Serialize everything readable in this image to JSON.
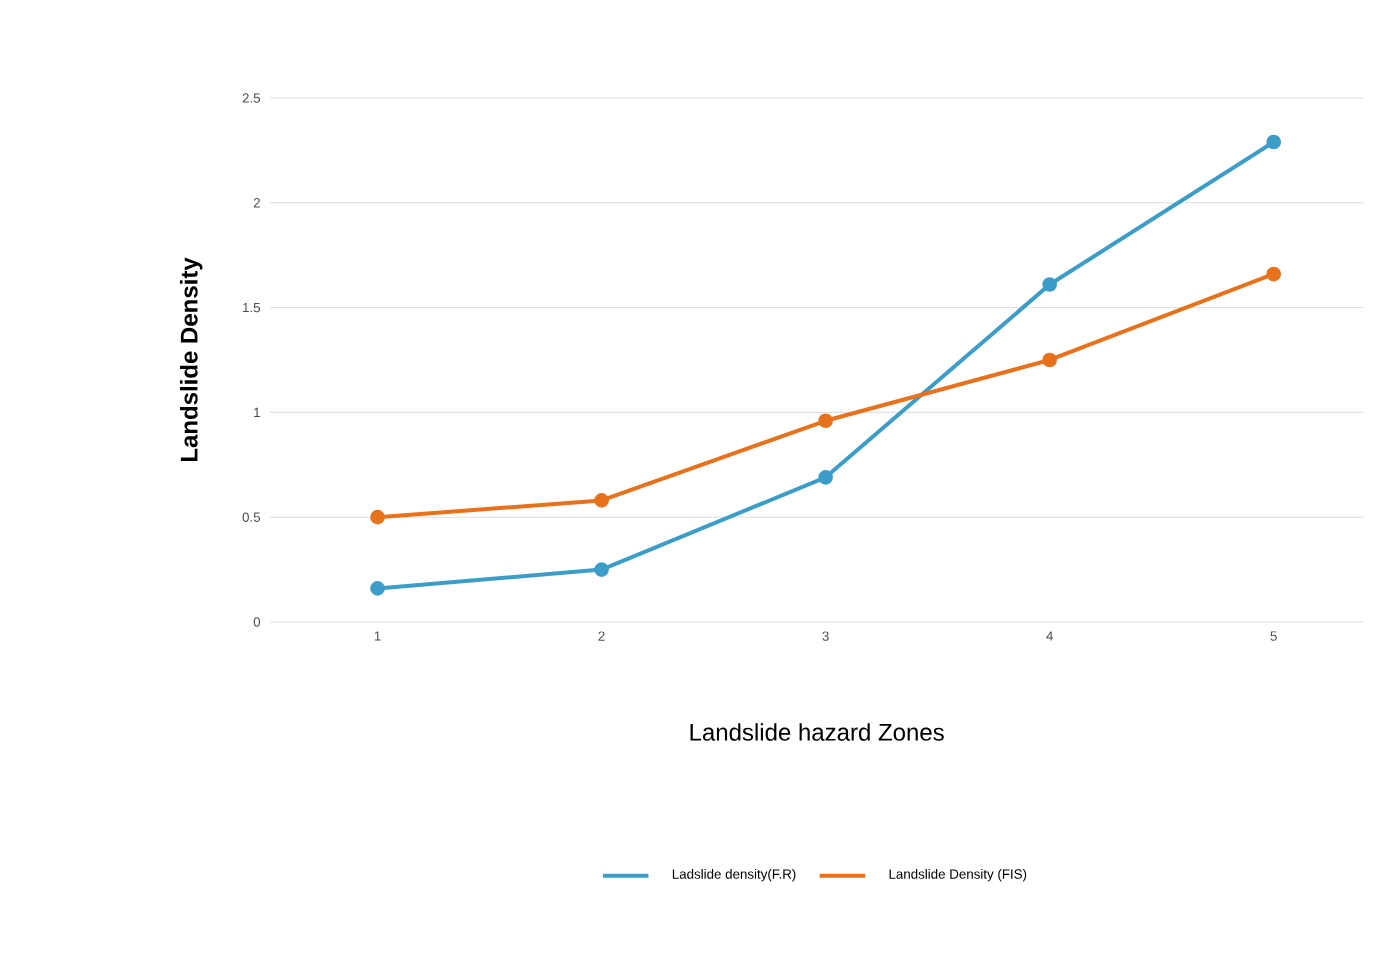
{
  "chart_data": {
    "type": "line",
    "xlabel": "Landslide hazard Zones",
    "ylabel": "Landslide Density",
    "categories": [
      "1",
      "2",
      "3",
      "4",
      "5"
    ],
    "series": [
      {
        "name": "Ladslide density(F.R)",
        "color": "#3c9dc8",
        "values": [
          0.16,
          0.25,
          0.69,
          1.61,
          2.29
        ]
      },
      {
        "name": "Landslide Density (FIS)",
        "color": "#e8711c",
        "values": [
          0.5,
          0.58,
          0.96,
          1.25,
          1.66
        ]
      }
    ],
    "ylim": [
      0,
      2.5
    ],
    "yticks": [
      0,
      0.5,
      1,
      1.5,
      2,
      2.5
    ],
    "grid": "y",
    "legend": "bottom",
    "marker": "circle",
    "line_style": "solid"
  }
}
